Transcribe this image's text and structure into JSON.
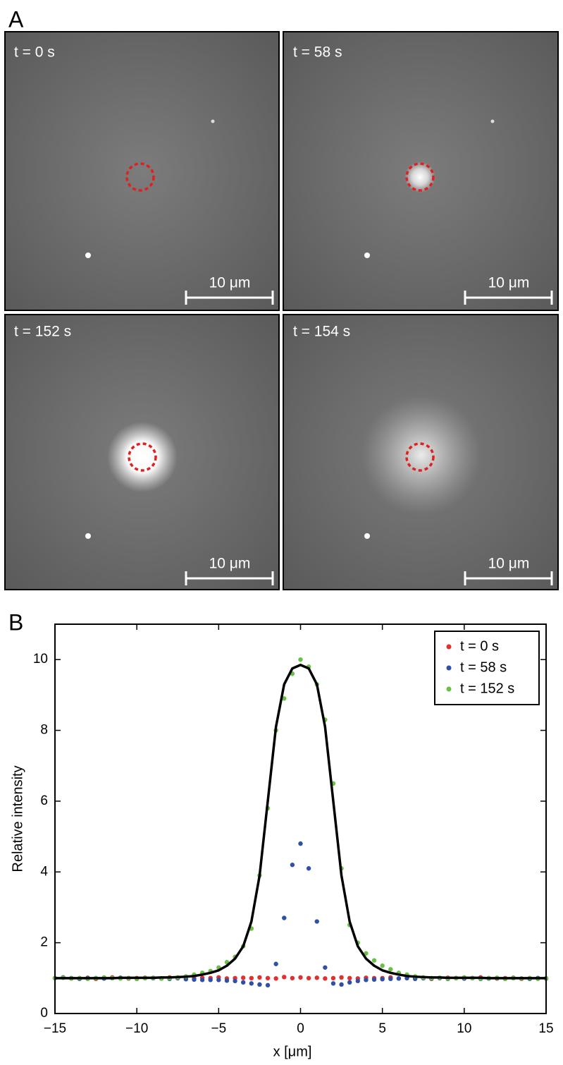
{
  "panel_a": {
    "label": "A",
    "images": [
      {
        "time": "t = 0 s",
        "scale": "10 μm"
      },
      {
        "time": "t = 58 s",
        "scale": "10 μm"
      },
      {
        "time": "t = 152 s",
        "scale": "10 μm"
      },
      {
        "time": "t = 154 s",
        "scale": "10 μm"
      }
    ]
  },
  "chart_data": {
    "type": "scatter",
    "panel_label": "B",
    "xlabel": "x [μm]",
    "ylabel": "Relative intensity",
    "xlim": [
      -15,
      15
    ],
    "ylim": [
      0,
      11
    ],
    "xticks": [
      {
        "value": -15,
        "label": "−15"
      },
      {
        "value": -10,
        "label": "−10"
      },
      {
        "value": -5,
        "label": "−5"
      },
      0,
      5,
      10,
      15
    ],
    "yticks": [
      0,
      2,
      4,
      6,
      8,
      10
    ],
    "legend": "upper right",
    "x": [
      -15,
      -14.5,
      -14,
      -13.5,
      -13,
      -12.5,
      -12,
      -11.5,
      -11,
      -10.5,
      -10,
      -9.5,
      -9,
      -8.5,
      -8,
      -7.5,
      -7,
      -6.5,
      -6,
      -5.5,
      -5,
      -4.5,
      -4,
      -3.5,
      -3,
      -2.5,
      -2,
      -1.5,
      -1,
      -0.5,
      0,
      0.5,
      1,
      1.5,
      2,
      2.5,
      3,
      3.5,
      4,
      4.5,
      5,
      5.5,
      6,
      6.5,
      7,
      7.5,
      8,
      8.5,
      9,
      9.5,
      10,
      10.5,
      11,
      11.5,
      12,
      12.5,
      13,
      13.5,
      14,
      14.5,
      15
    ],
    "series": [
      {
        "name": "t = 0 s",
        "color": "#e03030",
        "values": [
          1.0,
          1.02,
          0.99,
          1.0,
          1.01,
          0.98,
          1.0,
          1.02,
          1.0,
          0.99,
          1.0,
          1.01,
          1.0,
          0.99,
          1.02,
          1.0,
          0.98,
          1.0,
          1.01,
          1.0,
          1.02,
          0.99,
          1.0,
          1.01,
          1.0,
          1.02,
          1.0,
          0.99,
          1.03,
          1.0,
          1.02,
          1.0,
          1.01,
          0.99,
          1.0,
          1.02,
          1.0,
          0.99,
          1.01,
          1.0,
          1.0,
          1.02,
          0.99,
          1.0,
          1.01,
          1.0,
          0.98,
          1.0,
          1.01,
          1.0,
          0.99,
          1.0,
          1.02,
          1.0,
          0.99,
          1.0,
          1.01,
          0.98,
          1.0,
          1.0,
          0.99
        ]
      },
      {
        "name": "t = 58 s",
        "color": "#3050a8",
        "values": [
          1.0,
          1.02,
          1.0,
          0.98,
          1.0,
          1.0,
          0.99,
          1.0,
          1.01,
          1.0,
          0.98,
          1.0,
          1.0,
          0.99,
          0.98,
          1.0,
          0.97,
          0.96,
          0.95,
          0.95,
          0.95,
          0.93,
          0.92,
          0.88,
          0.85,
          0.82,
          0.8,
          1.4,
          2.7,
          4.2,
          4.8,
          4.1,
          2.6,
          1.3,
          0.85,
          0.82,
          0.88,
          0.92,
          0.95,
          0.96,
          0.97,
          0.98,
          0.99,
          1.0,
          0.98,
          1.0,
          0.99,
          1.0,
          0.98,
          1.0,
          0.99,
          1.0,
          0.98,
          0.99,
          1.0,
          0.98,
          1.0,
          0.99,
          0.98,
          1.0,
          0.99
        ]
      },
      {
        "name": "t = 152 s",
        "color": "#6abf45",
        "values": [
          1.0,
          1.01,
          0.99,
          1.0,
          0.98,
          1.0,
          1.02,
          1.0,
          0.99,
          1.0,
          0.98,
          1.0,
          1.01,
          0.99,
          1.0,
          1.02,
          1.05,
          1.1,
          1.15,
          1.2,
          1.3,
          1.45,
          1.6,
          1.9,
          2.4,
          3.9,
          5.8,
          8.0,
          8.9,
          9.6,
          10.0,
          9.8,
          9.3,
          8.3,
          6.5,
          4.1,
          2.5,
          2.0,
          1.7,
          1.5,
          1.35,
          1.25,
          1.15,
          1.1,
          1.05,
          1.02,
          1.0,
          1.01,
          0.99,
          1.0,
          1.02,
          1.0,
          0.99,
          1.0,
          1.01,
          0.98,
          1.0,
          0.99,
          1.0,
          0.98,
          1.0
        ]
      },
      {
        "type": "line",
        "color": "#000000",
        "values": [
          1.0,
          1.0,
          1.0,
          1.0,
          1.0,
          1.0,
          1.0,
          1.0,
          1.01,
          1.01,
          1.01,
          1.01,
          1.01,
          1.02,
          1.02,
          1.03,
          1.04,
          1.06,
          1.1,
          1.15,
          1.22,
          1.35,
          1.55,
          1.9,
          2.6,
          3.9,
          6.0,
          8.1,
          9.3,
          9.75,
          9.85,
          9.75,
          9.3,
          8.1,
          6.0,
          3.9,
          2.6,
          1.9,
          1.55,
          1.35,
          1.22,
          1.15,
          1.1,
          1.06,
          1.04,
          1.03,
          1.02,
          1.02,
          1.01,
          1.01,
          1.01,
          1.01,
          1.01,
          1.0,
          1.0,
          1.0,
          1.0,
          1.0,
          1.0,
          1.0,
          1.0
        ]
      }
    ]
  }
}
